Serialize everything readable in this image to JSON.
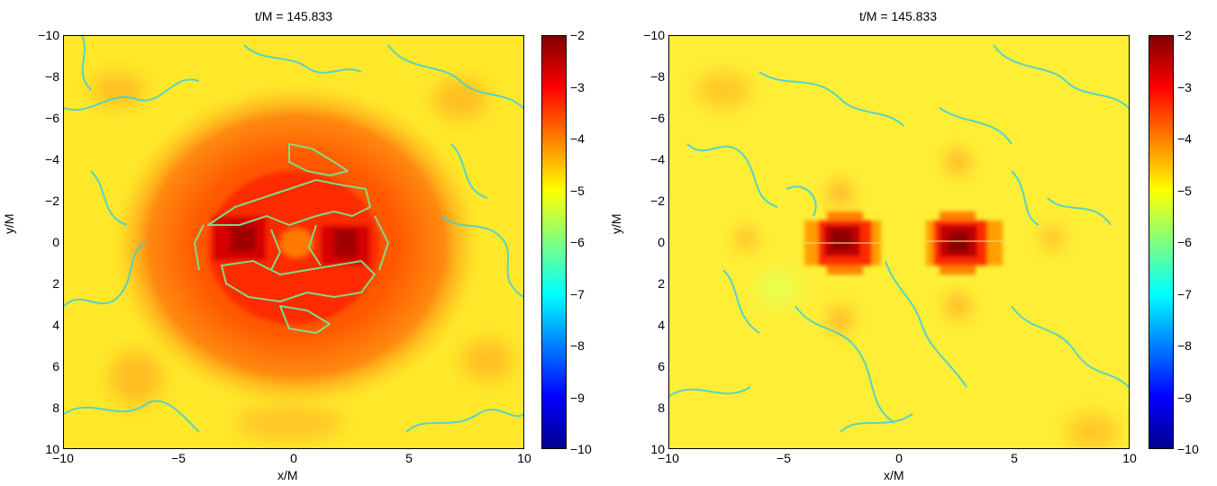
{
  "chart_data": [
    {
      "type": "heatmap",
      "title": "t/M = 145.833",
      "xlabel": "x/M",
      "ylabel": "y/M",
      "xlim": [
        -10,
        10
      ],
      "ylim": [
        -10,
        10
      ],
      "y_axis_reversed": true,
      "xticks": [
        "−10",
        "−5",
        "0",
        "5",
        "10"
      ],
      "yticks": [
        "−10",
        "−8",
        "−6",
        "−4",
        "−2",
        "0",
        "2",
        "4",
        "6",
        "8",
        "10"
      ],
      "colorbar": {
        "range": [
          -10,
          -2
        ],
        "ticks": [
          "−2",
          "−3",
          "−4",
          "−5",
          "−6",
          "−7",
          "−8",
          "−9",
          "−10"
        ],
        "colormap": "jet"
      },
      "features": [
        {
          "x": -2,
          "y": 0,
          "value": -2.4
        },
        {
          "x": 2,
          "y": 0.5,
          "value": -2.4
        },
        {
          "x": 0,
          "y": 0,
          "value": -3.5
        }
      ]
    },
    {
      "type": "heatmap",
      "title": "t/M = 145.833",
      "xlabel": "x/M",
      "ylabel": "y/M",
      "xlim": [
        -10,
        10
      ],
      "ylim": [
        -10,
        10
      ],
      "y_axis_reversed": true,
      "xticks": [
        "−10",
        "−5",
        "0",
        "5",
        "10"
      ],
      "yticks": [
        "−10",
        "−8",
        "−6",
        "−4",
        "−2",
        "0",
        "2",
        "4",
        "6",
        "8",
        "10"
      ],
      "colorbar": {
        "range": [
          -10,
          -2
        ],
        "ticks": [
          "−2",
          "−3",
          "−4",
          "−5",
          "−6",
          "−7",
          "−8",
          "−9",
          "−10"
        ],
        "colormap": "jet"
      },
      "features": [
        {
          "x": -2.7,
          "y": 0.2,
          "value": -2.2
        },
        {
          "x": 2.7,
          "y": 0.2,
          "value": -2.2
        }
      ]
    }
  ]
}
